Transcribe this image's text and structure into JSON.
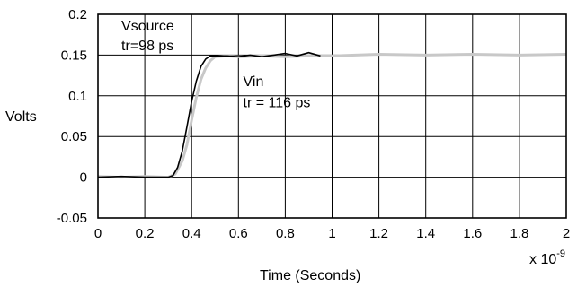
{
  "chart_data": {
    "type": "line",
    "title": "",
    "xlabel": "Time (Seconds)",
    "x_multiplier": "x 10",
    "x_multiplier_exp": "-9",
    "ylabel": "Volts",
    "xlim": [
      0,
      2
    ],
    "ylim": [
      -0.05,
      0.2
    ],
    "grid": true,
    "x_ticks": [
      0,
      0.2,
      0.4,
      0.6,
      0.8,
      1,
      1.2,
      1.4,
      1.6,
      1.8,
      2
    ],
    "x_tick_labels": [
      "0",
      "0.2",
      "0.4",
      "0.6",
      "0.8",
      "1",
      "1.2",
      "1.4",
      "1.6",
      "1.8",
      "2"
    ],
    "y_ticks": [
      -0.05,
      0,
      0.05,
      0.1,
      0.15,
      0.2
    ],
    "y_tick_labels": [
      "-0.05",
      "0",
      "0.05",
      "0.1",
      "0.15",
      "0.2"
    ],
    "series": [
      {
        "color": "#c8c8c8",
        "x": [
          0,
          0.1,
          0.2,
          0.3,
          0.33,
          0.36,
          0.38,
          0.4,
          0.42,
          0.44,
          0.46,
          0.48,
          0.5,
          0.55,
          0.6,
          0.7,
          0.8,
          0.9,
          1.0,
          1.2,
          1.4,
          1.6,
          1.8,
          2.0
        ],
        "y": [
          0.001,
          0.0,
          0.001,
          0.0,
          0.004,
          0.02,
          0.04,
          0.07,
          0.098,
          0.12,
          0.134,
          0.143,
          0.148,
          0.149,
          0.148,
          0.149,
          0.148,
          0.149,
          0.149,
          0.151,
          0.15,
          0.151,
          0.15,
          0.151
        ]
      },
      {
        "color": "#000000",
        "x": [
          0,
          0.1,
          0.2,
          0.3,
          0.32,
          0.34,
          0.36,
          0.38,
          0.4,
          0.42,
          0.44,
          0.46,
          0.48,
          0.5,
          0.55,
          0.6,
          0.65,
          0.7,
          0.75,
          0.8,
          0.85,
          0.9,
          0.95
        ],
        "y": [
          0.0,
          0.001,
          0.0,
          0.0,
          0.002,
          0.012,
          0.032,
          0.062,
          0.093,
          0.118,
          0.136,
          0.145,
          0.149,
          0.149,
          0.149,
          0.148,
          0.15,
          0.148,
          0.15,
          0.152,
          0.149,
          0.153,
          0.149
        ]
      }
    ],
    "annotations": [
      {
        "text": "Vsource",
        "x": 0.1,
        "y": 0.18
      },
      {
        "text": "tr=98 ps",
        "x": 0.1,
        "y": 0.156
      },
      {
        "text": "Vin",
        "x": 0.62,
        "y": 0.112
      },
      {
        "text": "tr = 116 ps",
        "x": 0.62,
        "y": 0.086
      }
    ]
  }
}
